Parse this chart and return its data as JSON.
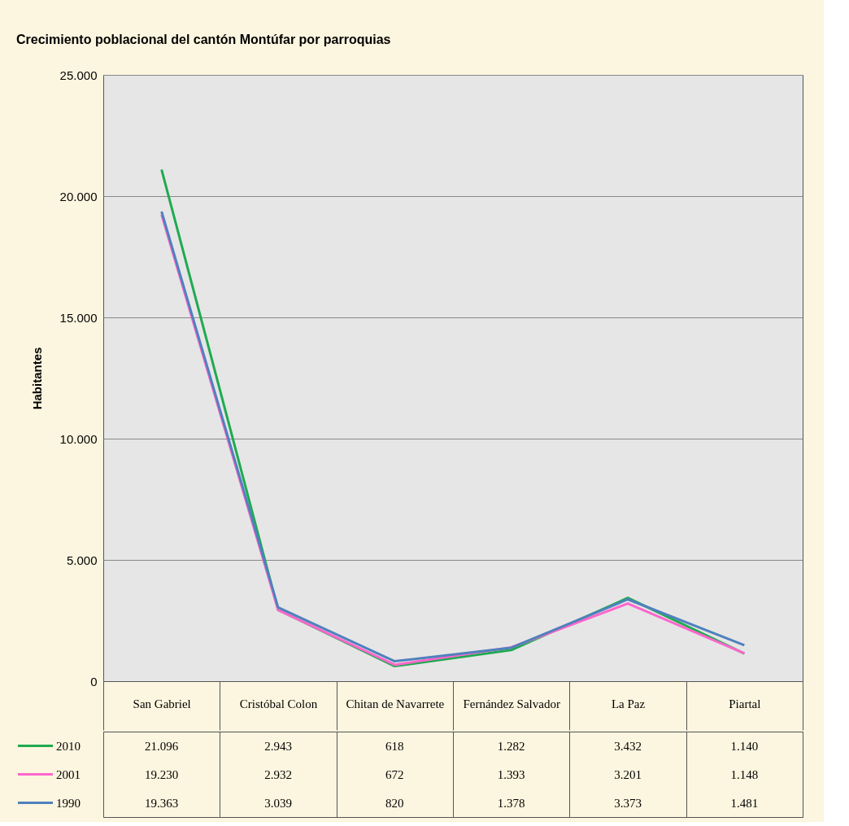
{
  "chart_data": {
    "type": "line",
    "title": "Crecimiento poblacional del cantón Montúfar por parroquias",
    "ylabel": "Habitantes",
    "categories": [
      "San Gabriel",
      "Cristóbal Colon",
      "Chitan de Navarrete",
      "Fernández Salvador",
      "La Paz",
      "Piartal"
    ],
    "series": [
      {
        "name": "2010",
        "color": "#1faa50",
        "values": [
          21096,
          2943,
          618,
          1282,
          3432,
          1140
        ],
        "value_labels": [
          "21.096",
          "2.943",
          "618",
          "1.282",
          "3.432",
          "1.140"
        ]
      },
      {
        "name": "2001",
        "color": "#ff66cc",
        "values": [
          19230,
          2932,
          672,
          1393,
          3201,
          1148
        ],
        "value_labels": [
          "19.230",
          "2.932",
          "672",
          "1.393",
          "3.201",
          "1.148"
        ]
      },
      {
        "name": "1990",
        "color": "#4f81bd",
        "values": [
          19363,
          3039,
          820,
          1378,
          3373,
          1481
        ],
        "value_labels": [
          "19.363",
          "3.039",
          "820",
          "1.378",
          "3.373",
          "1.481"
        ]
      }
    ],
    "ylim": [
      0,
      25000
    ],
    "yticks": [
      {
        "value": 0,
        "label": "0"
      },
      {
        "value": 5000,
        "label": "5.000"
      },
      {
        "value": 10000,
        "label": "10.000"
      },
      {
        "value": 15000,
        "label": "15.000"
      },
      {
        "value": 20000,
        "label": "20.000"
      },
      {
        "value": 25000,
        "label": "25.000"
      }
    ],
    "grid": "y",
    "legend": "bottom left",
    "marker": "none",
    "line_style": "solid"
  }
}
